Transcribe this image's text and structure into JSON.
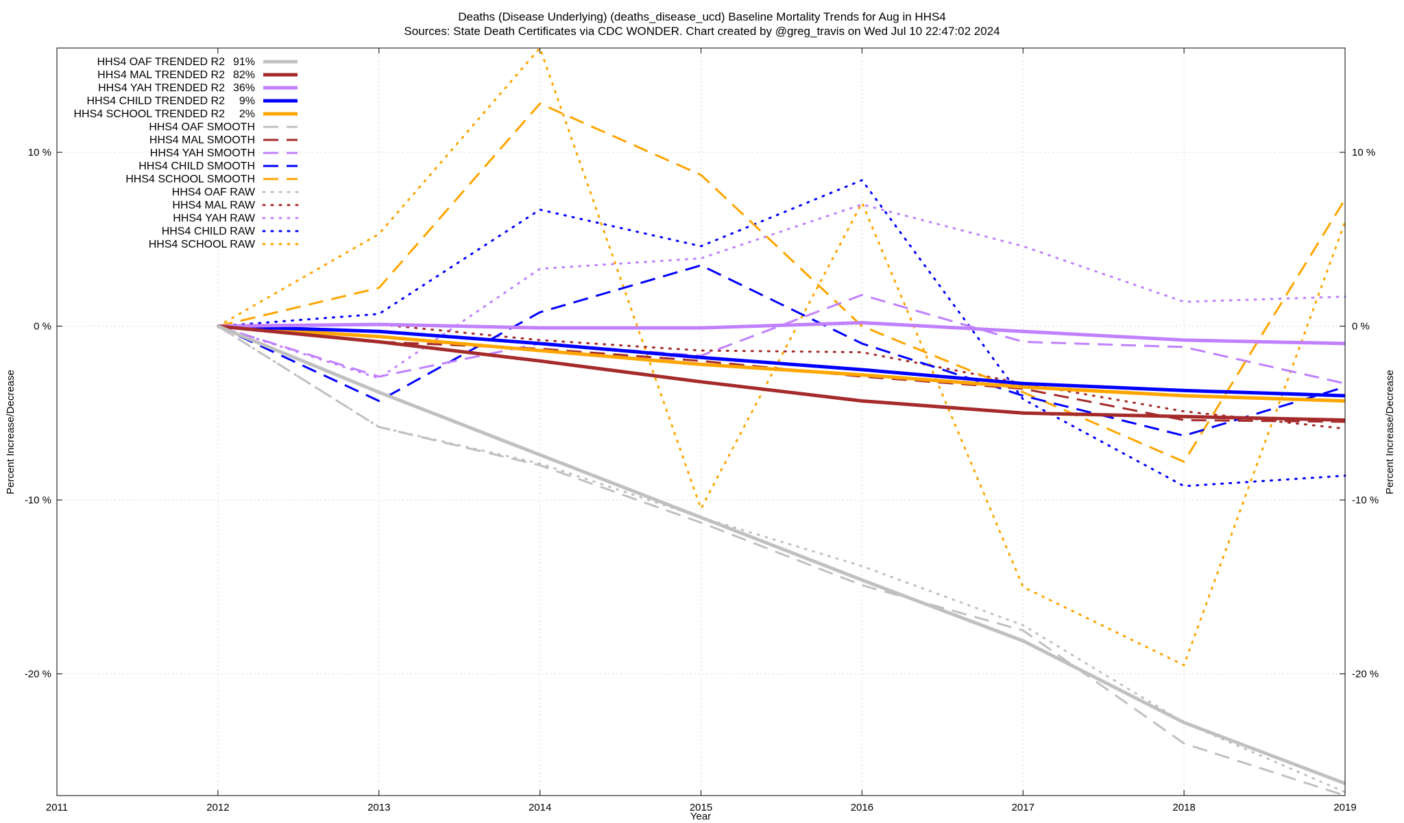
{
  "chart_data": {
    "type": "line",
    "title_lines": [
      "Deaths (Disease Underlying) (deaths_disease_ucd)  Baseline Mortality Trends for Aug in HHS4",
      "Sources: State Death Certificates via CDC WONDER.               Chart created by @greg_travis on Wed Jul 10 22:47:02 2024"
    ],
    "xlabel": "Year",
    "ylabel_left": "Percent Increase/Decrease",
    "ylabel_right": "Percent Increase/Decrease",
    "xlim": [
      2011,
      2019
    ],
    "ylim": [
      -27,
      16
    ],
    "x_ticks": [
      "2011",
      "2012",
      "2013",
      "2014",
      "2015",
      "2016",
      "2017",
      "2018",
      "2019"
    ],
    "y_ticks": [
      {
        "value": 10,
        "label": "10 %"
      },
      {
        "value": 0,
        "label": "0 %"
      },
      {
        "value": -10,
        "label": "-10 %"
      },
      {
        "value": -20,
        "label": "-20 %"
      }
    ],
    "grid": true,
    "legend_position": "top-left",
    "x": [
      2012,
      2013,
      2014,
      2015,
      2016,
      2017,
      2018,
      2019
    ],
    "colors": {
      "OAF": "#c0c0c0",
      "MAL": "#a52a2a",
      "YAH": "#c080ff",
      "CHILD": "#0000ff",
      "SCHOOL": "#ffa500"
    },
    "series": [
      {
        "name": "HHS4 OAF TRENDED R2",
        "r2": "91%",
        "group": "OAF",
        "style": "solid",
        "values": [
          0,
          -3.8,
          -7.4,
          -11.0,
          -14.6,
          -18.1,
          -22.8,
          -26.3
        ]
      },
      {
        "name": "HHS4 MAL TRENDED R2",
        "r2": "82%",
        "group": "MAL",
        "style": "solid",
        "values": [
          0,
          -0.9,
          -2.0,
          -3.2,
          -4.3,
          -5.0,
          -5.2,
          -5.4
        ]
      },
      {
        "name": "HHS4 YAH TRENDED R2",
        "r2": "36%",
        "group": "YAH",
        "style": "solid",
        "values": [
          0,
          0.1,
          -0.1,
          -0.1,
          0.2,
          -0.3,
          -0.8,
          -1.0
        ]
      },
      {
        "name": "HHS4 CHILD TRENDED R2",
        "r2": "9%",
        "group": "CHILD",
        "style": "solid",
        "values": [
          0,
          -0.3,
          -1.0,
          -1.8,
          -2.5,
          -3.3,
          -3.7,
          -4.0
        ]
      },
      {
        "name": "HHS4 SCHOOL TRENDED R2",
        "r2": "2%",
        "group": "SCHOOL",
        "style": "solid",
        "values": [
          0,
          -0.6,
          -1.4,
          -2.2,
          -2.8,
          -3.5,
          -4.0,
          -4.3
        ]
      },
      {
        "name": "HHS4 OAF SMOOTH",
        "r2": "",
        "group": "OAF",
        "style": "dash",
        "values": [
          0,
          -5.8,
          -8.0,
          -11.3,
          -14.9,
          -17.5,
          -24.0,
          -27.0
        ]
      },
      {
        "name": "HHS4 MAL SMOOTH",
        "r2": "",
        "group": "MAL",
        "style": "dash",
        "values": [
          0,
          -0.9,
          -1.3,
          -2.0,
          -2.9,
          -3.6,
          -5.4,
          -5.5
        ]
      },
      {
        "name": "HHS4 YAH SMOOTH",
        "r2": "",
        "group": "YAH",
        "style": "dash",
        "values": [
          0,
          -2.9,
          -1.0,
          -1.7,
          1.8,
          -0.9,
          -1.2,
          -3.3
        ]
      },
      {
        "name": "HHS4 CHILD SMOOTH",
        "r2": "",
        "group": "CHILD",
        "style": "dash",
        "values": [
          0,
          -4.3,
          0.8,
          3.5,
          -1.0,
          -4.0,
          -6.3,
          -3.5
        ]
      },
      {
        "name": "HHS4 SCHOOL SMOOTH",
        "r2": "",
        "group": "SCHOOL",
        "style": "dash",
        "values": [
          0,
          2.2,
          12.8,
          8.7,
          0.0,
          -3.8,
          -7.8,
          7.3
        ]
      },
      {
        "name": "HHS4 OAF RAW",
        "r2": "",
        "group": "OAF",
        "style": "dot",
        "values": [
          0,
          -5.8,
          -7.9,
          -11.0,
          -13.8,
          -17.2,
          -22.8,
          -26.8
        ]
      },
      {
        "name": "HHS4 MAL RAW",
        "r2": "",
        "group": "MAL",
        "style": "dot",
        "values": [
          0,
          0.1,
          -0.8,
          -1.4,
          -1.5,
          -3.3,
          -4.9,
          -5.9
        ]
      },
      {
        "name": "HHS4 YAH RAW",
        "r2": "",
        "group": "YAH",
        "style": "dot",
        "values": [
          0,
          -3.0,
          3.3,
          3.9,
          7.0,
          4.6,
          1.4,
          1.7
        ]
      },
      {
        "name": "HHS4 CHILD RAW",
        "r2": "",
        "group": "CHILD",
        "style": "dot",
        "values": [
          0,
          0.7,
          6.7,
          4.6,
          8.4,
          -4.2,
          -9.2,
          -8.6
        ]
      },
      {
        "name": "HHS4 SCHOOL RAW",
        "r2": "",
        "group": "SCHOOL",
        "style": "dot",
        "values": [
          0,
          5.3,
          16.0,
          -10.5,
          7.1,
          -15.0,
          -19.5,
          6.0
        ]
      }
    ]
  }
}
